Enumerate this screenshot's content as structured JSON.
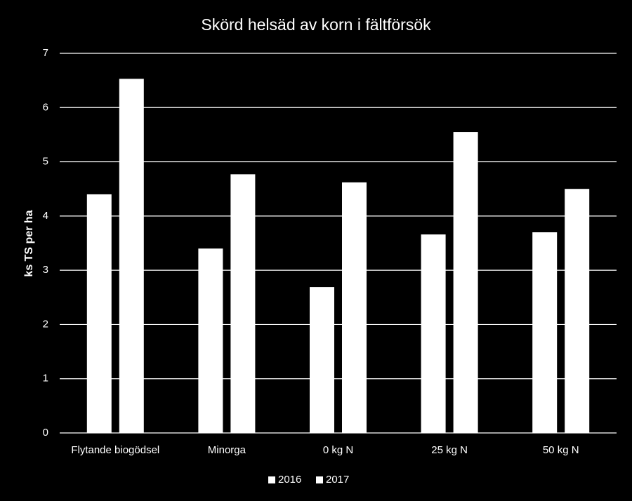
{
  "chart_data": {
    "type": "bar",
    "title": "Skörd helsäd av korn i fältförsök",
    "y_label": "ks TS per ha",
    "categories": [
      "Flytande biogödsel",
      "Minorga",
      "0 kg N",
      "25 kg N",
      "50 kg N"
    ],
    "series": [
      {
        "name": "2016",
        "color": "#ffffff",
        "values": [
          4.4,
          3.4,
          2.69,
          3.66,
          3.7
        ]
      },
      {
        "name": "2017",
        "color": "#ffffff",
        "values": [
          6.53,
          4.77,
          4.62,
          5.55,
          4.5
        ]
      }
    ],
    "ylim": [
      0,
      7
    ],
    "yticks": [
      0,
      1,
      2,
      3,
      4,
      5,
      6,
      7
    ],
    "grid": true,
    "legend": "bottom"
  }
}
